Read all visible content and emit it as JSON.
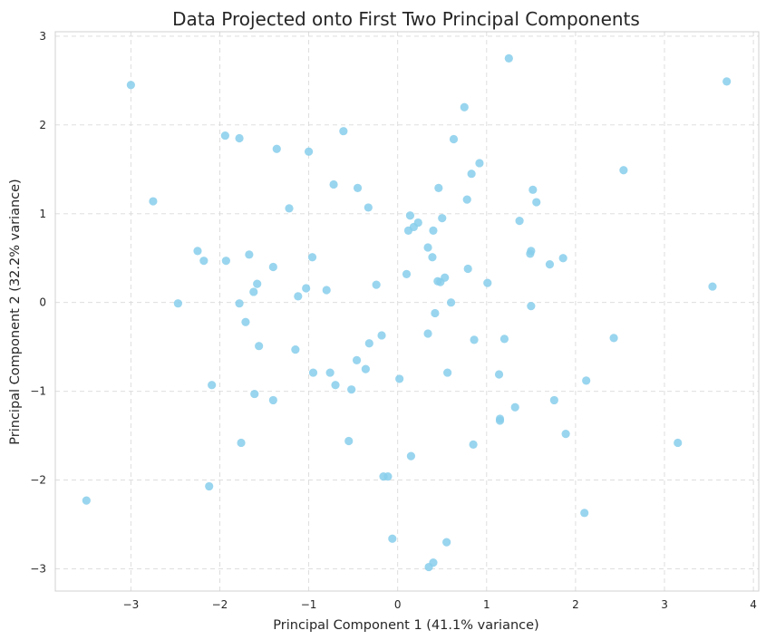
{
  "chart_data": {
    "type": "scatter",
    "title": "Data Projected onto First Two Principal Components",
    "xlabel": "Principal Component 1 (41.1% variance)",
    "ylabel": "Principal Component 2 (32.2% variance)",
    "xlim": [
      -3.85,
      4.06
    ],
    "ylim": [
      -3.25,
      3.05
    ],
    "xticks": [
      -3,
      -2,
      -1,
      0,
      1,
      2,
      3,
      4
    ],
    "yticks": [
      -3,
      -2,
      -1,
      0,
      1,
      2,
      3
    ],
    "xtick_labels": [
      "−3",
      "−2",
      "−1",
      "0",
      "1",
      "2",
      "3",
      "4"
    ],
    "ytick_labels": [
      "−3",
      "−2",
      "−1",
      "0",
      "1",
      "2",
      "3"
    ],
    "grid": true,
    "color": "#87ceeb",
    "points": [
      [
        -3.5,
        -2.23
      ],
      [
        -3.0,
        2.45
      ],
      [
        -2.75,
        1.14
      ],
      [
        -2.47,
        -0.01
      ],
      [
        -2.25,
        0.58
      ],
      [
        -2.18,
        0.47
      ],
      [
        -2.12,
        -2.07
      ],
      [
        -2.09,
        -0.93
      ],
      [
        -1.94,
        1.88
      ],
      [
        -1.93,
        0.47
      ],
      [
        -1.78,
        1.85
      ],
      [
        -1.78,
        -0.01
      ],
      [
        -1.76,
        -1.58
      ],
      [
        -1.71,
        -0.22
      ],
      [
        -1.67,
        0.54
      ],
      [
        -1.62,
        0.12
      ],
      [
        -1.61,
        -1.03
      ],
      [
        -1.58,
        0.21
      ],
      [
        -1.56,
        -0.49
      ],
      [
        -1.4,
        0.4
      ],
      [
        -1.4,
        -1.1
      ],
      [
        -1.36,
        1.73
      ],
      [
        -1.22,
        1.06
      ],
      [
        -1.15,
        -0.53
      ],
      [
        -1.12,
        0.07
      ],
      [
        -1.03,
        0.16
      ],
      [
        -1.0,
        1.7
      ],
      [
        -0.96,
        0.51
      ],
      [
        -0.95,
        -0.79
      ],
      [
        -0.8,
        0.14
      ],
      [
        -0.76,
        -0.79
      ],
      [
        -0.72,
        1.33
      ],
      [
        -0.7,
        -0.93
      ],
      [
        -0.61,
        1.93
      ],
      [
        -0.55,
        -1.56
      ],
      [
        -0.52,
        -0.98
      ],
      [
        -0.46,
        -0.65
      ],
      [
        -0.45,
        1.29
      ],
      [
        -0.36,
        -0.75
      ],
      [
        -0.33,
        1.07
      ],
      [
        -0.32,
        -0.46
      ],
      [
        -0.24,
        0.2
      ],
      [
        -0.18,
        -0.37
      ],
      [
        -0.16,
        -1.96
      ],
      [
        -0.11,
        -1.96
      ],
      [
        -0.06,
        -2.66
      ],
      [
        0.02,
        -0.86
      ],
      [
        0.1,
        0.32
      ],
      [
        0.12,
        0.81
      ],
      [
        0.14,
        0.98
      ],
      [
        0.15,
        -1.73
      ],
      [
        0.18,
        0.85
      ],
      [
        0.23,
        0.9
      ],
      [
        0.34,
        0.62
      ],
      [
        0.34,
        -0.35
      ],
      [
        0.35,
        -2.98
      ],
      [
        0.39,
        0.51
      ],
      [
        0.4,
        0.81
      ],
      [
        0.4,
        -2.93
      ],
      [
        0.42,
        -0.12
      ],
      [
        0.45,
        0.24
      ],
      [
        0.46,
        1.29
      ],
      [
        0.48,
        0.23
      ],
      [
        0.5,
        0.95
      ],
      [
        0.53,
        0.28
      ],
      [
        0.55,
        -2.7
      ],
      [
        0.56,
        -0.79
      ],
      [
        0.6,
        0.0
      ],
      [
        0.63,
        1.84
      ],
      [
        0.75,
        2.2
      ],
      [
        0.78,
        1.16
      ],
      [
        0.79,
        0.38
      ],
      [
        0.83,
        1.45
      ],
      [
        0.85,
        -1.6
      ],
      [
        0.86,
        -0.42
      ],
      [
        0.92,
        1.57
      ],
      [
        1.01,
        0.22
      ],
      [
        1.14,
        -0.81
      ],
      [
        1.15,
        -1.31
      ],
      [
        1.15,
        -1.33
      ],
      [
        1.2,
        -0.41
      ],
      [
        1.25,
        2.75
      ],
      [
        1.32,
        -1.18
      ],
      [
        1.37,
        0.92
      ],
      [
        1.49,
        0.55
      ],
      [
        1.5,
        0.58
      ],
      [
        1.5,
        -0.04
      ],
      [
        1.52,
        1.27
      ],
      [
        1.56,
        1.13
      ],
      [
        1.71,
        0.43
      ],
      [
        1.76,
        -1.1
      ],
      [
        1.86,
        0.5
      ],
      [
        1.89,
        -1.48
      ],
      [
        2.1,
        -2.37
      ],
      [
        2.12,
        -0.88
      ],
      [
        2.43,
        -0.4
      ],
      [
        2.54,
        1.49
      ],
      [
        3.15,
        -1.58
      ],
      [
        3.54,
        0.18
      ],
      [
        3.7,
        2.49
      ]
    ]
  }
}
